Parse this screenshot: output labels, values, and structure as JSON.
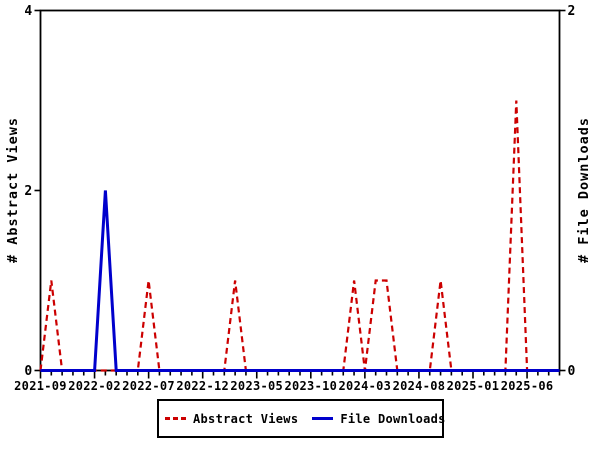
{
  "chart_data": {
    "type": "line",
    "title": "",
    "y_left_label": "# Abstract Views",
    "y_right_label": "# File Downloads",
    "x": [
      "2021-09",
      "2021-10",
      "2021-11",
      "2021-12",
      "2022-01",
      "2022-02",
      "2022-03",
      "2022-04",
      "2022-05",
      "2022-06",
      "2022-07",
      "2022-08",
      "2022-09",
      "2022-10",
      "2022-11",
      "2022-12",
      "2023-01",
      "2023-02",
      "2023-03",
      "2023-04",
      "2023-05",
      "2023-06",
      "2023-07",
      "2023-08",
      "2023-09",
      "2023-10",
      "2023-11",
      "2023-12",
      "2024-01",
      "2024-02",
      "2024-03",
      "2024-04",
      "2024-05",
      "2024-06",
      "2024-07",
      "2024-08",
      "2024-09",
      "2024-10",
      "2024-11",
      "2024-12",
      "2025-01",
      "2025-02",
      "2025-03",
      "2025-04",
      "2025-05",
      "2025-06",
      "2025-07",
      "2025-08",
      "2025-09"
    ],
    "series": [
      {
        "name": "Abstract Views",
        "axis": "left",
        "color": "#cc0000",
        "style": "dashed",
        "values": [
          0,
          1,
          0,
          0,
          0,
          0,
          0,
          0,
          0,
          0,
          1,
          0,
          0,
          0,
          0,
          0,
          0,
          0,
          1,
          0,
          0,
          0,
          0,
          0,
          0,
          0,
          0,
          0,
          0,
          1,
          0,
          1,
          1,
          0,
          0,
          0,
          0,
          1,
          0,
          0,
          0,
          0,
          0,
          0,
          3,
          0,
          0,
          0,
          0
        ]
      },
      {
        "name": "File Downloads",
        "axis": "right",
        "color": "#0000cc",
        "style": "solid",
        "values": [
          0,
          0,
          0,
          0,
          0,
          0,
          1,
          0,
          0,
          0,
          0,
          0,
          0,
          0,
          0,
          0,
          0,
          0,
          0,
          0,
          0,
          0,
          0,
          0,
          0,
          0,
          0,
          0,
          0,
          0,
          0,
          0,
          0,
          0,
          0,
          0,
          0,
          0,
          0,
          0,
          0,
          0,
          0,
          0,
          0,
          0,
          0,
          0,
          0
        ]
      }
    ],
    "x_major_tick_every": 5,
    "x_major_tick_labels": [
      "2021-09",
      "2022-02",
      "2022-07",
      "2022-12",
      "2023-05",
      "2023-10",
      "2024-03",
      "2024-08",
      "2025-01",
      "2025-06"
    ],
    "y_left": {
      "min": 0,
      "max": 4,
      "ticks": [
        0,
        2,
        4
      ]
    },
    "y_right": {
      "min": 0,
      "max": 2,
      "ticks": [
        0,
        2
      ]
    },
    "legend": {
      "position": "bottom-center",
      "items": [
        "Abstract Views",
        "File Downloads"
      ]
    },
    "grid": "off",
    "axis_color": "#000000",
    "background_color": "#ffffff"
  }
}
